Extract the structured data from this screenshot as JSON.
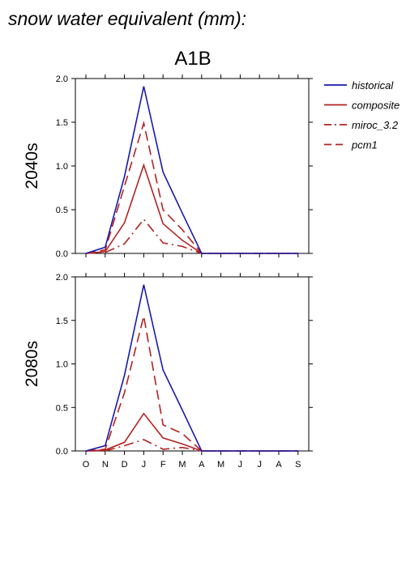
{
  "page_title": "snow water equivalent (mm):",
  "chart_data": {
    "type": "line",
    "title": "A1B",
    "categories": [
      "O",
      "N",
      "D",
      "J",
      "F",
      "M",
      "A",
      "M",
      "J",
      "J",
      "A",
      "S"
    ],
    "ylim": [
      0,
      2
    ],
    "yticks": [
      "0.0",
      "0.5",
      "1.0",
      "1.5",
      "2.0"
    ],
    "grid": false,
    "legend_position": "top-right",
    "legend": [
      {
        "name": "historical",
        "color": "#1a1aaa",
        "dash": "solid"
      },
      {
        "name": "composite",
        "color": "#b22222",
        "dash": "solid"
      },
      {
        "name": "miroc_3.2",
        "color": "#b22222",
        "dash": "dashdot"
      },
      {
        "name": "pcm1",
        "color": "#b22222",
        "dash": "dashed"
      }
    ],
    "panels": [
      {
        "ylabel": "2040s",
        "series": [
          {
            "name": "historical",
            "values": [
              0.0,
              0.07,
              0.88,
              1.91,
              0.93,
              0.46,
              0.0,
              0.0,
              0.0,
              0.0,
              0.0,
              0.0
            ]
          },
          {
            "name": "composite",
            "values": [
              0.0,
              0.02,
              0.35,
              1.01,
              0.34,
              0.15,
              0.0,
              0.0,
              0.0,
              0.0,
              0.0,
              0.0
            ]
          },
          {
            "name": "miroc_3.2",
            "values": [
              0.0,
              0.01,
              0.11,
              0.39,
              0.12,
              0.08,
              0.0,
              0.0,
              0.0,
              0.0,
              0.0,
              0.0
            ]
          },
          {
            "name": "pcm1",
            "values": [
              0.0,
              0.04,
              0.77,
              1.49,
              0.5,
              0.27,
              0.0,
              0.0,
              0.0,
              0.0,
              0.0,
              0.0
            ]
          }
        ]
      },
      {
        "ylabel": "2080s",
        "series": [
          {
            "name": "historical",
            "values": [
              0.0,
              0.06,
              0.87,
              1.91,
              0.93,
              0.47,
              0.0,
              0.0,
              0.0,
              0.0,
              0.0,
              0.0
            ]
          },
          {
            "name": "composite",
            "values": [
              0.0,
              0.01,
              0.1,
              0.43,
              0.15,
              0.08,
              0.0,
              0.0,
              0.0,
              0.0,
              0.0,
              0.0
            ]
          },
          {
            "name": "miroc_3.2",
            "values": [
              0.0,
              0.0,
              0.06,
              0.13,
              0.02,
              0.04,
              0.0,
              0.0,
              0.0,
              0.0,
              0.0,
              0.0
            ]
          },
          {
            "name": "pcm1",
            "values": [
              0.0,
              0.02,
              0.67,
              1.55,
              0.3,
              0.2,
              0.0,
              0.0,
              0.0,
              0.0,
              0.0,
              0.0
            ]
          }
        ]
      }
    ]
  }
}
